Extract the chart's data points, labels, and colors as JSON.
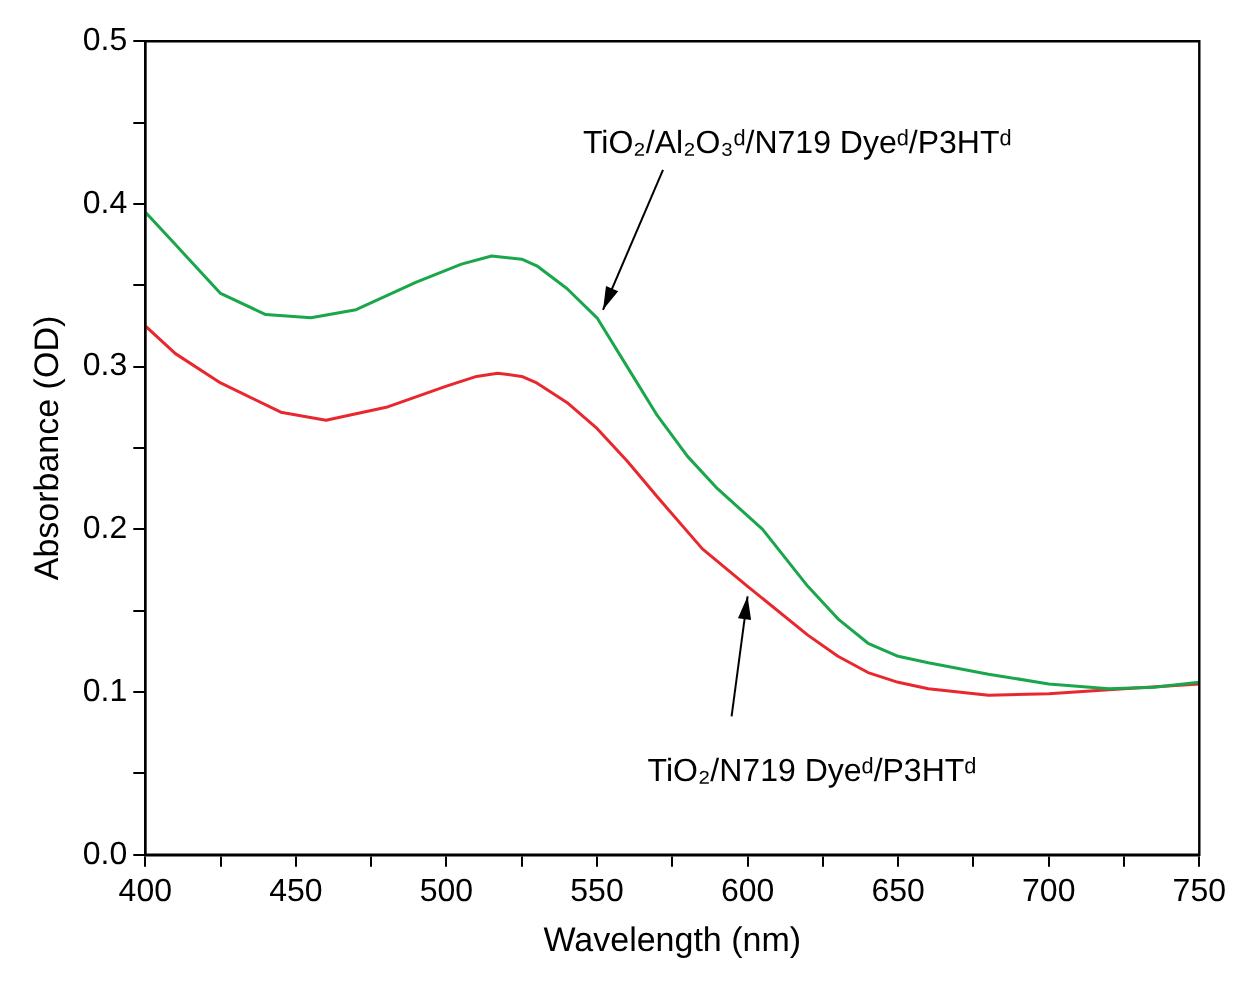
{
  "chart_data": {
    "type": "line",
    "xlabel": "Wavelength (nm)",
    "ylabel": "Absorbance (OD)",
    "xlim": [
      400,
      750
    ],
    "ylim": [
      0,
      0.5
    ],
    "xticks": [
      400,
      {
        "value": 425,
        "label": null
      },
      450,
      {
        "value": 475,
        "label": null
      },
      500,
      {
        "value": 525,
        "label": null
      },
      550,
      {
        "value": 575,
        "label": null
      },
      600,
      {
        "value": 625,
        "label": null
      },
      650,
      {
        "value": 675,
        "label": null
      },
      700,
      {
        "value": 725,
        "label": null
      },
      750
    ],
    "yticks": [
      {
        "value": 0,
        "label": "0.0"
      },
      {
        "value": 0.05,
        "label": null
      },
      {
        "value": 0.1,
        "label": "0.1"
      },
      {
        "value": 0.15,
        "label": null
      },
      {
        "value": 0.2,
        "label": "0.2"
      },
      {
        "value": 0.25,
        "label": null
      },
      {
        "value": 0.3,
        "label": "0.3"
      },
      {
        "value": 0.35,
        "label": null
      },
      {
        "value": 0.4,
        "label": "0.4"
      },
      {
        "value": 0.45,
        "label": null
      },
      {
        "value": 0.5,
        "label": "0.5"
      }
    ],
    "grid": false,
    "legend": false,
    "marker": "none",
    "line_style": "solid",
    "series": [
      {
        "name": "TiO₂/Al₂O₃ᵈ/N719 Dyeᵈ/P3HTᵈ",
        "color": "#1aa64a",
        "x": [
          400,
          410,
          425,
          440,
          455,
          470,
          490,
          505,
          515,
          525,
          530,
          540,
          550,
          560,
          570,
          580,
          590,
          605,
          620,
          630,
          640,
          650,
          660,
          680,
          700,
          720,
          735,
          750
        ],
        "values": [
          0.395,
          0.375,
          0.345,
          0.332,
          0.33,
          0.335,
          0.352,
          0.363,
          0.368,
          0.366,
          0.362,
          0.348,
          0.33,
          0.3,
          0.27,
          0.245,
          0.225,
          0.2,
          0.165,
          0.145,
          0.13,
          0.122,
          0.118,
          0.111,
          0.105,
          0.102,
          0.103,
          0.106
        ]
      },
      {
        "name": "TiO₂/N719 Dyeᵈ/P3HTᵈ",
        "color": "#e8282e",
        "x": [
          400,
          410,
          425,
          445,
          460,
          480,
          500,
          510,
          517,
          525,
          530,
          540,
          550,
          560,
          570,
          585,
          600,
          620,
          630,
          640,
          650,
          660,
          680,
          700,
          725,
          750
        ],
        "values": [
          0.325,
          0.308,
          0.29,
          0.272,
          0.267,
          0.275,
          0.288,
          0.294,
          0.296,
          0.294,
          0.29,
          0.278,
          0.262,
          0.242,
          0.22,
          0.188,
          0.165,
          0.135,
          0.122,
          0.112,
          0.106,
          0.102,
          0.098,
          0.099,
          0.102,
          0.105
        ]
      }
    ]
  }
}
